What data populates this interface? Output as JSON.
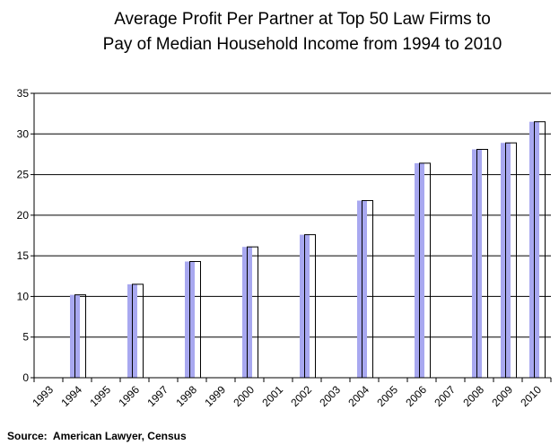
{
  "chart_data": {
    "type": "bar",
    "title": [
      "Average Profit Per Partner at Top 50 Law Firms to",
      "Pay of Median Household Income from 1994 to 2010"
    ],
    "categories": [
      "1993",
      "1994",
      "1995",
      "1996",
      "1997",
      "1998",
      "1999",
      "2000",
      "2001",
      "2002",
      "2003",
      "2004",
      "2005",
      "2006",
      "2007",
      "2008",
      "2009",
      "2010"
    ],
    "values": [
      null,
      10.2,
      null,
      11.5,
      null,
      14.3,
      null,
      16.1,
      null,
      17.6,
      null,
      21.8,
      null,
      26.4,
      null,
      28.1,
      28.9,
      31.5
    ],
    "color": "#a8a8f0",
    "ylim": [
      0,
      35
    ],
    "yticks": [
      0,
      5,
      10,
      15,
      20,
      25,
      30,
      35
    ],
    "grid": true,
    "source": "Source:  American Lawyer, Census"
  }
}
